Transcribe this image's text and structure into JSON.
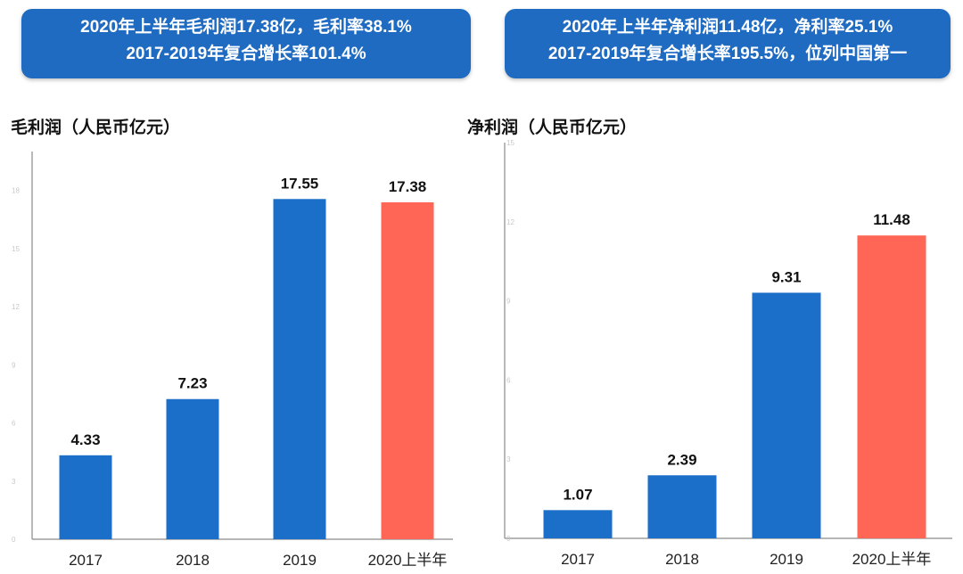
{
  "banners": {
    "left": {
      "line1": "2020年上半年毛利润17.38亿，毛利率38.1%",
      "line2": "2017-2019年复合增长率101.4%"
    },
    "right": {
      "line1": "2020年上半年净利润11.48亿，净利率25.1%",
      "line2": "2017-2019年复合增长率195.5%，位列中国第一"
    }
  },
  "colors": {
    "banner_bg": "#1f6bc2",
    "bar_blue": "#1b6fc8",
    "bar_highlight": "#ff6655",
    "axis": "#8a8a8a"
  },
  "chart_data": [
    {
      "type": "bar",
      "title": "毛利润（人民币亿元）",
      "categories": [
        "2017",
        "2018",
        "2019",
        "2020上半年"
      ],
      "values": [
        4.33,
        7.23,
        17.55,
        17.38
      ],
      "data_labels": [
        "4.33",
        "7.23",
        "17.55",
        "17.38"
      ],
      "highlight_index": 3,
      "ylim": [
        0,
        20
      ],
      "yticks": [
        0,
        3,
        6,
        9,
        12,
        15,
        18
      ],
      "grid": false,
      "legend": "none"
    },
    {
      "type": "bar",
      "title": "净利润（人民币亿元）",
      "categories": [
        "2017",
        "2018",
        "2019",
        "2020上半年"
      ],
      "values": [
        1.07,
        2.39,
        9.31,
        11.48
      ],
      "data_labels": [
        "1.07",
        "2.39",
        "9.31",
        "11.48"
      ],
      "highlight_index": 3,
      "ylim": [
        0,
        15
      ],
      "yticks": [
        0,
        3,
        6,
        9,
        12,
        15
      ],
      "grid": false,
      "legend": "none"
    }
  ]
}
